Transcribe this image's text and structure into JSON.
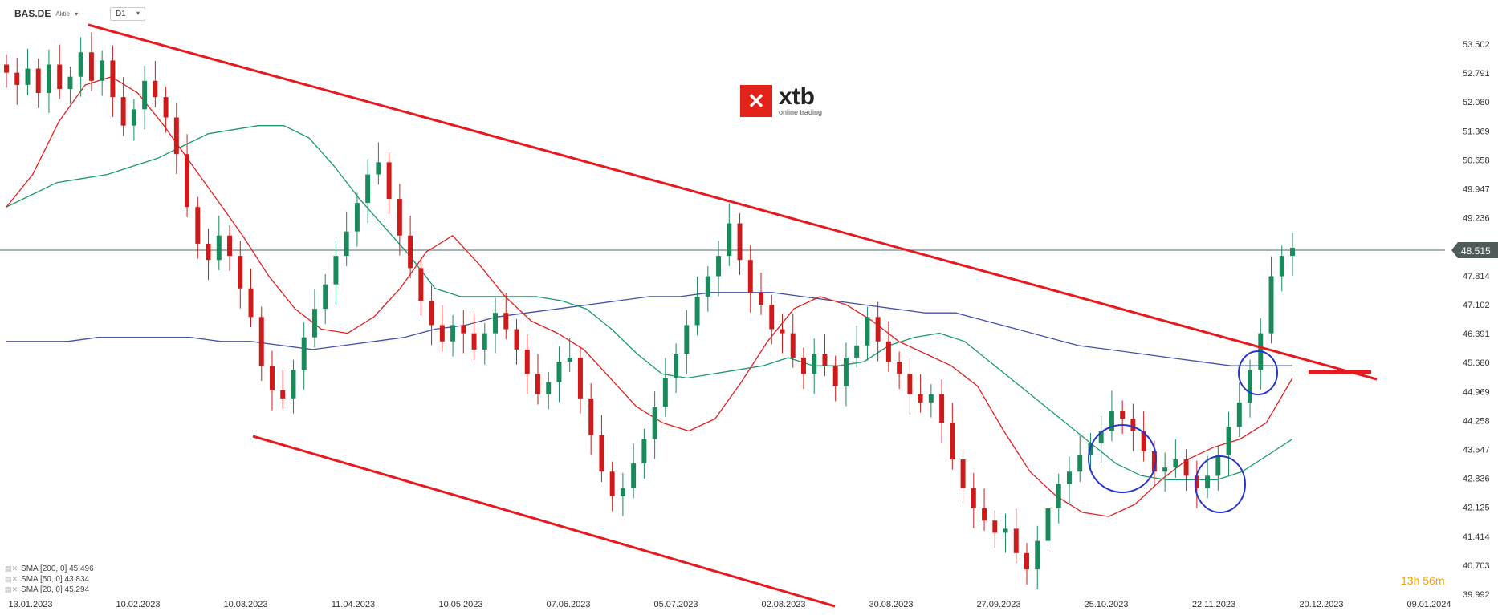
{
  "header": {
    "symbol": "BAS.DE",
    "instrument_type": "Aktie",
    "timeframe": "D1"
  },
  "logo": {
    "brand": "xtb",
    "tagline": "online trading"
  },
  "countdown": "13h 56m",
  "indicators": [
    {
      "label": "SMA [200, 0] 45.496",
      "color": "#4450a8"
    },
    {
      "label": "SMA [50, 0] 43.834",
      "color": "#1a9a6a"
    },
    {
      "label": "SMA [20, 0] 45.294",
      "color": "#e02020"
    }
  ],
  "chart_data": {
    "type": "candlestick",
    "y_ticks": [
      "53.502",
      "52.791",
      "52.080",
      "51.369",
      "50.658",
      "49.947",
      "49.236",
      "48.525",
      "47.814",
      "47.102",
      "46.391",
      "45.680",
      "44.969",
      "44.258",
      "43.547",
      "42.836",
      "42.125",
      "41.414",
      "40.703",
      "39.992"
    ],
    "ylim": [
      39.992,
      53.502
    ],
    "x_ticks": [
      "13.01.2023",
      "10.02.2023",
      "10.03.2023",
      "11.04.2023",
      "10.05.2023",
      "07.06.2023",
      "05.07.2023",
      "02.08.2023",
      "30.08.2023",
      "27.09.2023",
      "25.10.2023",
      "22.11.2023",
      "20.12.2023",
      "09.01.2024"
    ],
    "current_price": "48.515",
    "closes": [
      52.8,
      52.5,
      52.9,
      52.3,
      53.0,
      52.4,
      52.7,
      53.3,
      52.6,
      53.1,
      52.2,
      51.5,
      51.9,
      52.6,
      52.2,
      51.7,
      50.8,
      49.5,
      48.6,
      48.2,
      48.8,
      48.3,
      47.5,
      46.8,
      45.6,
      45.0,
      44.8,
      45.5,
      46.3,
      47.0,
      47.6,
      48.3,
      48.9,
      49.6,
      50.3,
      50.6,
      49.7,
      48.8,
      48.0,
      47.2,
      46.6,
      46.2,
      46.6,
      46.4,
      46.0,
      46.4,
      46.9,
      46.5,
      46.0,
      45.4,
      44.9,
      45.2,
      45.7,
      45.8,
      44.8,
      43.9,
      43.0,
      42.4,
      42.6,
      43.2,
      43.8,
      44.6,
      45.3,
      45.9,
      46.6,
      47.3,
      47.8,
      48.3,
      49.1,
      48.2,
      47.4,
      47.1,
      46.5,
      46.4,
      45.8,
      45.4,
      45.9,
      45.6,
      45.1,
      45.8,
      46.1,
      46.8,
      46.2,
      45.7,
      45.4,
      44.9,
      44.7,
      44.9,
      44.2,
      43.3,
      42.6,
      42.1,
      41.8,
      41.5,
      41.6,
      41.0,
      40.6,
      41.3,
      42.1,
      42.7,
      43.0,
      43.4,
      43.7,
      44.0,
      44.5,
      44.3,
      44.0,
      43.5,
      43.0,
      43.1,
      43.3,
      42.9,
      42.6,
      42.9,
      43.4,
      44.1,
      44.7,
      45.5,
      46.4,
      47.8,
      48.3,
      48.5
    ],
    "sma200": [
      46.2,
      46.2,
      46.2,
      46.3,
      46.3,
      46.3,
      46.3,
      46.2,
      46.2,
      46.1,
      46.0,
      46.1,
      46.2,
      46.3,
      46.5,
      46.6,
      46.8,
      46.9,
      47.0,
      47.1,
      47.2,
      47.3,
      47.3,
      47.4,
      47.4,
      47.4,
      47.3,
      47.2,
      47.1,
      47.0,
      46.9,
      46.9,
      46.7,
      46.5,
      46.3,
      46.1,
      46.0,
      45.9,
      45.8,
      45.7,
      45.6,
      45.6,
      45.6
    ],
    "sma50": [
      49.5,
      49.8,
      50.1,
      50.2,
      50.3,
      50.5,
      50.7,
      51.0,
      51.3,
      51.4,
      51.5,
      51.5,
      51.2,
      50.5,
      49.7,
      49.0,
      48.3,
      47.5,
      47.3,
      47.3,
      47.3,
      47.3,
      47.2,
      47.0,
      46.5,
      45.9,
      45.4,
      45.3,
      45.4,
      45.5,
      45.6,
      45.8,
      45.6,
      45.6,
      45.7,
      46.1,
      46.3,
      46.4,
      46.2,
      45.7,
      45.2,
      44.7,
      44.2,
      43.7,
      43.2,
      42.9,
      42.8,
      42.8,
      42.8,
      43.0,
      43.4,
      43.8
    ],
    "sma20": [
      49.5,
      50.3,
      51.6,
      52.5,
      52.7,
      52.3,
      51.5,
      50.6,
      49.7,
      48.8,
      47.8,
      47.0,
      46.5,
      46.4,
      46.8,
      47.5,
      48.4,
      48.8,
      48.1,
      47.3,
      46.7,
      46.4,
      46.0,
      45.3,
      44.6,
      44.2,
      44.0,
      44.3,
      45.2,
      46.2,
      47.0,
      47.3,
      47.1,
      46.7,
      46.2,
      45.9,
      45.6,
      45.1,
      44.0,
      43.0,
      42.4,
      42.0,
      41.9,
      42.2,
      42.8,
      43.3,
      43.6,
      43.8,
      44.2,
      45.3
    ]
  }
}
